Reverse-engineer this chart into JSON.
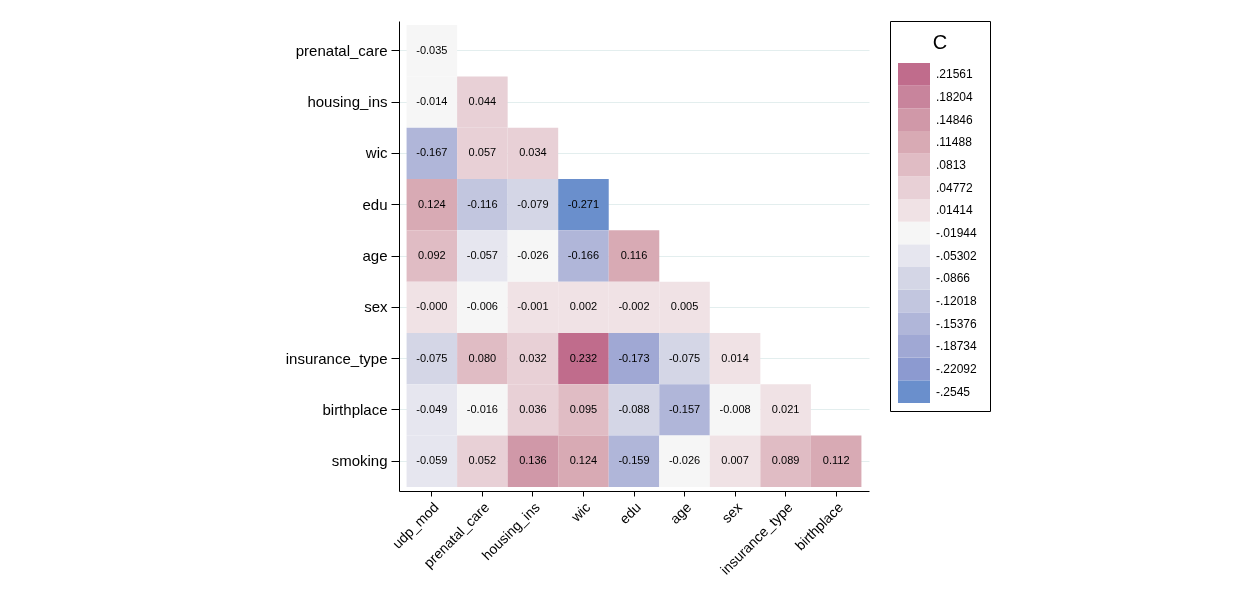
{
  "chart_data": {
    "type": "heatmap",
    "legend_title": "C",
    "grid": "y",
    "categories": [
      "udp_mod",
      "prenatal_care",
      "housing_ins",
      "wic",
      "edu",
      "age",
      "sex",
      "insurance_type",
      "birthplace"
    ],
    "y_categories": [
      "prenatal_care",
      "housing_ins",
      "wic",
      "edu",
      "age",
      "sex",
      "insurance_type",
      "birthplace",
      "smoking"
    ],
    "cells": [
      [
        -0.035,
        null,
        null,
        null,
        null,
        null,
        null,
        null,
        null
      ],
      [
        -0.014,
        0.044,
        null,
        null,
        null,
        null,
        null,
        null,
        null
      ],
      [
        -0.167,
        0.057,
        0.034,
        null,
        null,
        null,
        null,
        null,
        null
      ],
      [
        0.124,
        -0.116,
        -0.079,
        -0.271,
        null,
        null,
        null,
        null,
        null
      ],
      [
        0.092,
        -0.057,
        -0.026,
        -0.166,
        0.116,
        null,
        null,
        null,
        null
      ],
      [
        0,
        -0.006,
        -0.001,
        0.002,
        -0.002,
        0.005,
        null,
        null,
        null
      ],
      [
        -0.075,
        0.08,
        0.032,
        0.232,
        -0.173,
        -0.075,
        0.014,
        null,
        null
      ],
      [
        -0.049,
        -0.016,
        0.036,
        0.095,
        -0.088,
        -0.157,
        -0.008,
        0.021,
        null
      ],
      [
        -0.059,
        0.052,
        0.136,
        0.124,
        -0.159,
        -0.026,
        0.007,
        0.089,
        0.112
      ]
    ],
    "cell_labels": [
      [
        "-0.035",
        null,
        null,
        null,
        null,
        null,
        null,
        null,
        null
      ],
      [
        "-0.014",
        "0.044",
        null,
        null,
        null,
        null,
        null,
        null,
        null
      ],
      [
        "-0.167",
        "0.057",
        "0.034",
        null,
        null,
        null,
        null,
        null,
        null
      ],
      [
        "0.124",
        "-0.116",
        "-0.079",
        "-0.271",
        null,
        null,
        null,
        null,
        null
      ],
      [
        "0.092",
        "-0.057",
        "-0.026",
        "-0.166",
        "0.116",
        null,
        null,
        null,
        null
      ],
      [
        "-0.000",
        "-0.006",
        "-0.001",
        "0.002",
        "-0.002",
        "0.005",
        null,
        null,
        null
      ],
      [
        "-0.075",
        "0.080",
        "0.032",
        "0.232",
        "-0.173",
        "-0.075",
        "0.014",
        null,
        null
      ],
      [
        "-0.049",
        "-0.016",
        "0.036",
        "0.095",
        "-0.088",
        "-0.157",
        "-0.008",
        "0.021",
        null
      ],
      [
        "-0.059",
        "0.052",
        "0.136",
        "0.124",
        "-0.159",
        "-0.026",
        "0.007",
        "0.089",
        "0.112"
      ]
    ],
    "clim": [
      -0.2713,
      0.2324
    ],
    "cticks": [
      {
        "value": -0.2545,
        "label": "-.2545"
      },
      {
        "value": -0.22092,
        "label": "-.22092"
      },
      {
        "value": -0.18734,
        "label": "-.18734"
      },
      {
        "value": -0.15376,
        "label": "-.15376"
      },
      {
        "value": -0.12018,
        "label": "-.12018"
      },
      {
        "value": -0.0866,
        "label": "-.0866"
      },
      {
        "value": -0.05302,
        "label": "-.05302"
      },
      {
        "value": -0.01944,
        "label": "-.01944"
      },
      {
        "value": 0.01414,
        "label": ".01414"
      },
      {
        "value": 0.04772,
        "label": ".04772"
      },
      {
        "value": 0.0813,
        "label": ".0813"
      },
      {
        "value": 0.11488,
        "label": ".11488"
      },
      {
        "value": 0.14846,
        "label": ".14846"
      },
      {
        "value": 0.18204,
        "label": ".18204"
      },
      {
        "value": 0.21561,
        "label": ".21561"
      }
    ],
    "colors": [
      "#6a8fcc",
      "#8c9ad0",
      "#a0a8d4",
      "#b0b6d9",
      "#c2c6df",
      "#d4d6e6",
      "#e6e6ef",
      "#f6f6f6",
      "#f0e2e5",
      "#e8d0d6",
      "#e0bcc4",
      "#d8aab4",
      "#d098a8",
      "#c8849c",
      "#c06c8c"
    ]
  }
}
